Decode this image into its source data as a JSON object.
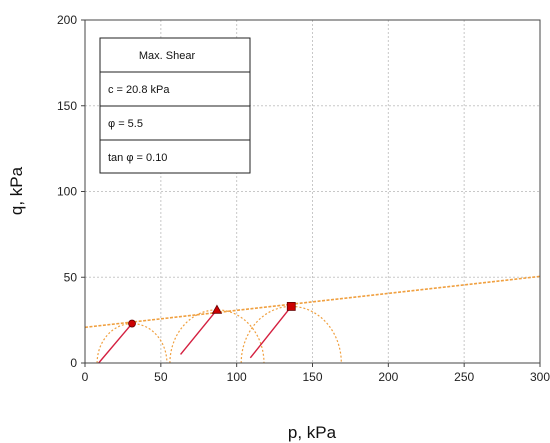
{
  "chart_data": {
    "type": "scatter",
    "xlabel": "p, kPa",
    "ylabel": "q, kPa",
    "xlim": [
      0,
      300
    ],
    "ylim": [
      0,
      200
    ],
    "xticks": [
      0,
      50,
      100,
      150,
      200,
      250,
      300
    ],
    "yticks": [
      0,
      50,
      100,
      150,
      200
    ],
    "grid": true,
    "legend_box": {
      "position": "top-left",
      "title": "Max. Shear",
      "rows": [
        "c = 20.8 kPa",
        "φ = 5.5",
        "tan φ = 0.10"
      ]
    },
    "failure_line": {
      "color": "#f0a040",
      "points": [
        [
          0,
          20.8
        ],
        [
          300,
          50.5
        ]
      ]
    },
    "points": [
      {
        "marker": "circle",
        "p": 31,
        "q": 23
      },
      {
        "marker": "triangle",
        "p": 87,
        "q": 31
      },
      {
        "marker": "square",
        "p": 136,
        "q": 33
      }
    ],
    "stress_paths": [
      {
        "from": [
          9,
          0
        ],
        "to": [
          31,
          23
        ]
      },
      {
        "from": [
          63,
          5
        ],
        "to": [
          87,
          31
        ]
      },
      {
        "from": [
          109,
          3
        ],
        "to": [
          136,
          33
        ]
      }
    ],
    "mohr_circles": [
      {
        "center": 31,
        "radius": 23
      },
      {
        "center": 87,
        "radius": 31
      },
      {
        "center": 136,
        "radius": 33
      }
    ],
    "colors": {
      "marker": "#cc0000",
      "path": "#d42040",
      "circle": "#f0a040"
    }
  }
}
